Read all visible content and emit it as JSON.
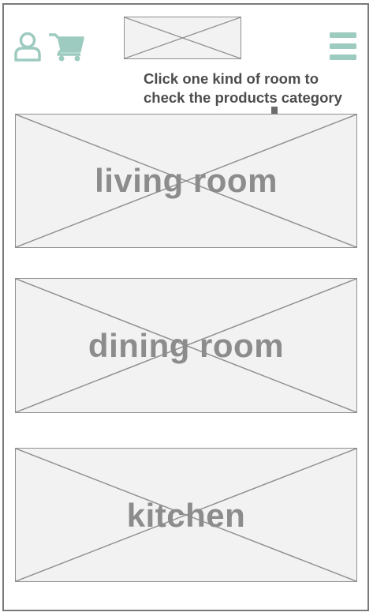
{
  "header": {
    "user_icon": "user-icon",
    "cart_icon": "cart-icon",
    "logo_placeholder": "logo-image-placeholder",
    "menu_icon": "hamburger-menu-icon",
    "accent_color": "#9ecbbf"
  },
  "annotation": {
    "line1": "Click one kind of room to",
    "line2": "check the products category",
    "arrow_icon": "arrow-down-icon"
  },
  "rooms": [
    {
      "label": "living room"
    },
    {
      "label": "dining room"
    },
    {
      "label": "kitchen"
    }
  ]
}
